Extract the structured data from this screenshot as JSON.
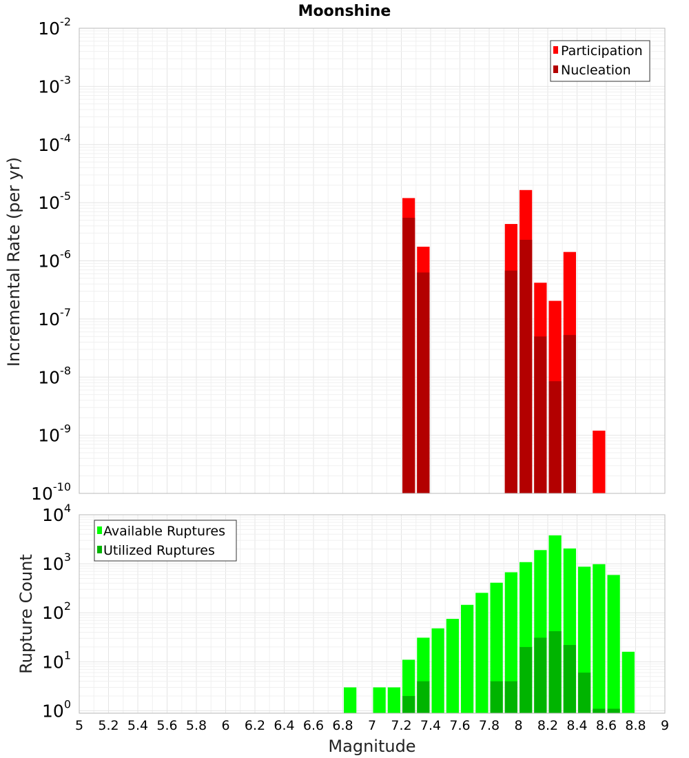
{
  "title": "Moonshine",
  "xlabel": "Magnitude",
  "chart_data": [
    {
      "type": "bar",
      "scale": "log",
      "ylabel": "Incremental Rate (per yr)",
      "ylim_exponents": [
        -10,
        -2
      ],
      "ytick_base": "10",
      "ytick_exponents": [
        "-10",
        "-9",
        "-8",
        "-7",
        "-6",
        "-5",
        "-4",
        "-3",
        "-2"
      ],
      "xlim": [
        5,
        9
      ],
      "bin_width": 0.1,
      "legend_position": "top-right",
      "series": [
        {
          "name": "Participation",
          "color": "#ff0000",
          "points": [
            {
              "x": 7.25,
              "y": 1.2e-05
            },
            {
              "x": 7.35,
              "y": 1.75e-06
            },
            {
              "x": 7.95,
              "y": 4.3e-06
            },
            {
              "x": 8.05,
              "y": 1.65e-05
            },
            {
              "x": 8.15,
              "y": 4.2e-07
            },
            {
              "x": 8.25,
              "y": 2.05e-07
            },
            {
              "x": 8.35,
              "y": 1.42e-06
            },
            {
              "x": 8.55,
              "y": 1.2e-09
            }
          ]
        },
        {
          "name": "Nucleation",
          "color": "#b30000",
          "points": [
            {
              "x": 7.25,
              "y": 5.5e-06
            },
            {
              "x": 7.35,
              "y": 6.3e-07
            },
            {
              "x": 7.95,
              "y": 6.8e-07
            },
            {
              "x": 8.05,
              "y": 2.3e-06
            },
            {
              "x": 8.15,
              "y": 5e-08
            },
            {
              "x": 8.25,
              "y": 8.5e-09
            },
            {
              "x": 8.35,
              "y": 5.3e-08
            }
          ]
        }
      ]
    },
    {
      "type": "bar",
      "scale": "log",
      "ylabel": "Rupture Count",
      "ylim_exponents": [
        -0.05,
        4
      ],
      "ytick_base": "10",
      "ytick_exponents": [
        "0",
        "1",
        "2",
        "3",
        "4"
      ],
      "xlim": [
        5,
        9
      ],
      "bin_width": 0.1,
      "legend_position": "top-left",
      "series": [
        {
          "name": "Available Ruptures",
          "color": "#00ff00",
          "points": [
            {
              "x": 6.85,
              "y": 3
            },
            {
              "x": 7.05,
              "y": 3
            },
            {
              "x": 7.15,
              "y": 3
            },
            {
              "x": 7.25,
              "y": 11
            },
            {
              "x": 7.35,
              "y": 31
            },
            {
              "x": 7.45,
              "y": 48
            },
            {
              "x": 7.55,
              "y": 75
            },
            {
              "x": 7.65,
              "y": 145
            },
            {
              "x": 7.75,
              "y": 255
            },
            {
              "x": 7.85,
              "y": 410
            },
            {
              "x": 7.95,
              "y": 670
            },
            {
              "x": 8.05,
              "y": 1080
            },
            {
              "x": 8.15,
              "y": 1900
            },
            {
              "x": 8.25,
              "y": 3800
            },
            {
              "x": 8.35,
              "y": 2050
            },
            {
              "x": 8.45,
              "y": 870
            },
            {
              "x": 8.55,
              "y": 980
            },
            {
              "x": 8.65,
              "y": 590
            },
            {
              "x": 8.75,
              "y": 16
            }
          ]
        },
        {
          "name": "Utilized Ruptures",
          "color": "#00b400",
          "points": [
            {
              "x": 7.25,
              "y": 2
            },
            {
              "x": 7.35,
              "y": 4
            },
            {
              "x": 7.85,
              "y": 4
            },
            {
              "x": 7.95,
              "y": 4
            },
            {
              "x": 8.05,
              "y": 20
            },
            {
              "x": 8.15,
              "y": 31
            },
            {
              "x": 8.25,
              "y": 42
            },
            {
              "x": 8.35,
              "y": 22
            },
            {
              "x": 8.45,
              "y": 6
            },
            {
              "x": 8.55,
              "y": 1.1
            },
            {
              "x": 8.65,
              "y": 1.1
            }
          ]
        }
      ]
    }
  ],
  "xticks": [
    "5",
    "5.2",
    "5.4",
    "5.6",
    "5.8",
    "6",
    "6.2",
    "6.4",
    "6.6",
    "6.8",
    "7",
    "7.2",
    "7.4",
    "7.6",
    "7.8",
    "8",
    "8.2",
    "8.4",
    "8.6",
    "8.8",
    "9"
  ]
}
